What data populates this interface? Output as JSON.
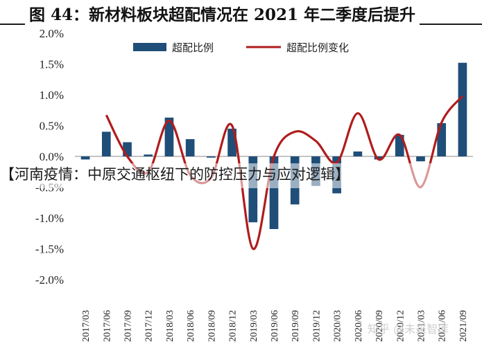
{
  "title": "图 44：新材料板块超配情况在 2021 年二季度后提升",
  "overlay_caption": "【河南疫情：中原交通枢纽下的防控压力与应对逻辑】",
  "watermark": "知乎 @未来智库",
  "colors": {
    "bar": "#1f4e79",
    "line": "#b01c1c"
  },
  "chart_data": {
    "type": "bar",
    "categories": [
      "2017/03",
      "2017/06",
      "2017/09",
      "2017/12",
      "2018/03",
      "2018/06",
      "2018/09",
      "2018/12",
      "2019/03",
      "2019/06",
      "2019/09",
      "2019/12",
      "2020/03",
      "2020/06",
      "2020/09",
      "2020/12",
      "2021/03",
      "2021/06",
      "2021/09"
    ],
    "ylim": [
      -2.0,
      2.0
    ],
    "y_ticks": [
      "2.0%",
      "1.5%",
      "1.0%",
      "0.5%",
      "0.0%",
      "-0.5%",
      "-1.0%",
      "-1.5%",
      "-2.0%"
    ],
    "legend": [
      "超配比例",
      "超配比例变化"
    ],
    "legend_position": "top",
    "grid": false,
    "series": [
      {
        "name": "超配比例",
        "type": "bar",
        "values": [
          -0.05,
          0.4,
          0.23,
          0.03,
          0.63,
          0.28,
          -0.02,
          0.45,
          -1.07,
          -1.18,
          -0.78,
          -0.48,
          -0.6,
          0.08,
          -0.05,
          0.35,
          -0.08,
          0.54,
          1.52
        ]
      },
      {
        "name": "超配比例变化",
        "type": "line",
        "values": [
          null,
          0.67,
          0.0,
          -0.25,
          0.58,
          -0.3,
          -0.35,
          0.5,
          -1.5,
          0.0,
          0.4,
          0.25,
          -0.1,
          0.7,
          -0.05,
          0.35,
          -0.5,
          0.55,
          0.98
        ]
      }
    ]
  }
}
